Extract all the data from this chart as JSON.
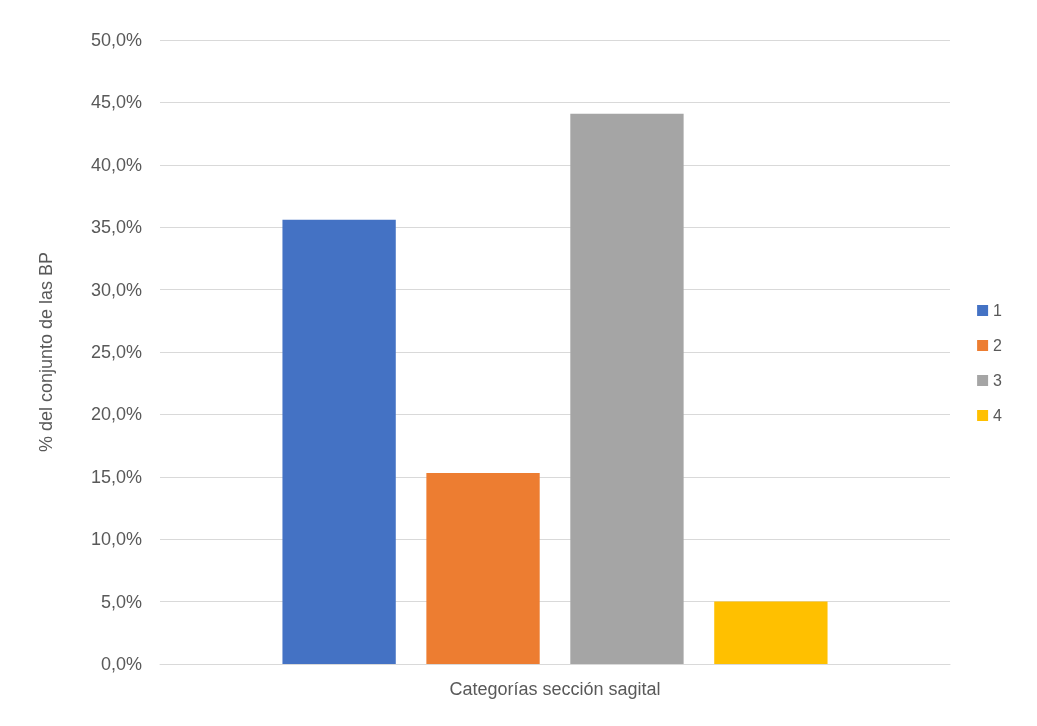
{
  "chart_data": {
    "type": "bar",
    "ylabel": "% del conjunto de las BP",
    "categories": [
      "Categorías sección sagital"
    ],
    "series": [
      {
        "name": "1",
        "color": "#4472c4",
        "values": [
          35.6
        ]
      },
      {
        "name": "2",
        "color": "#ed7d31",
        "values": [
          15.3
        ]
      },
      {
        "name": "3",
        "color": "#a5a5a5",
        "values": [
          44.1
        ]
      },
      {
        "name": "4",
        "color": "#ffc000",
        "values": [
          5.0
        ]
      }
    ],
    "ylim": [
      0,
      50
    ],
    "yticks": [
      {
        "value": 0,
        "label": "0,0%"
      },
      {
        "value": 5,
        "label": "5,0%"
      },
      {
        "value": 10,
        "label": "10,0%"
      },
      {
        "value": 15,
        "label": "15,0%"
      },
      {
        "value": 20,
        "label": "20,0%"
      },
      {
        "value": 25,
        "label": "25,0%"
      },
      {
        "value": 30,
        "label": "30,0%"
      },
      {
        "value": 35,
        "label": "35,0%"
      },
      {
        "value": 40,
        "label": "40,0%"
      },
      {
        "value": 45,
        "label": "45,0%"
      },
      {
        "value": 50,
        "label": "50,0%"
      }
    ],
    "grid": "y",
    "legend": "right"
  }
}
